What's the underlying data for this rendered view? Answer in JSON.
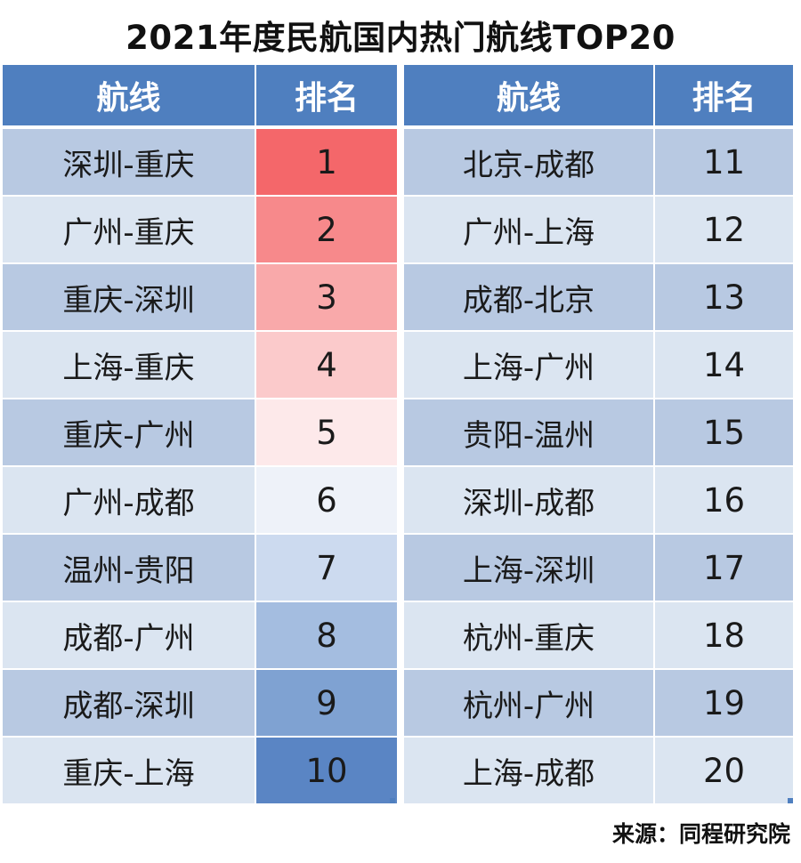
{
  "title": "2021年度民航国内热门航线TOP20",
  "source": "来源：同程研究院",
  "headers": {
    "route": "航线",
    "rank": "排名"
  },
  "colors": {
    "header_bg": "#4f7fbf",
    "row_dark": "#b8c9e2",
    "row_light": "#dbe5f1",
    "scale_top": "#f4676a",
    "scale_mid": "#f3f5fb",
    "scale_bottom": "#5a85c4"
  },
  "chart_data": {
    "type": "table",
    "title": "2021年度民航国内热门航线TOP20",
    "columns": [
      "航线",
      "排名"
    ],
    "rows": [
      {
        "route": "深圳-重庆",
        "rank": "1"
      },
      {
        "route": "广州-重庆",
        "rank": "2"
      },
      {
        "route": "重庆-深圳",
        "rank": "3"
      },
      {
        "route": "上海-重庆",
        "rank": "4"
      },
      {
        "route": "重庆-广州",
        "rank": "5"
      },
      {
        "route": "广州-成都",
        "rank": "6"
      },
      {
        "route": "温州-贵阳",
        "rank": "7"
      },
      {
        "route": "成都-广州",
        "rank": "8"
      },
      {
        "route": "成都-深圳",
        "rank": "9"
      },
      {
        "route": "重庆-上海",
        "rank": "10"
      },
      {
        "route": "北京-成都",
        "rank": "11"
      },
      {
        "route": "广州-上海",
        "rank": "12"
      },
      {
        "route": "成都-北京",
        "rank": "13"
      },
      {
        "route": "上海-广州",
        "rank": "14"
      },
      {
        "route": "贵阳-温州",
        "rank": "15"
      },
      {
        "route": "深圳-成都",
        "rank": "16"
      },
      {
        "route": "上海-深圳",
        "rank": "17"
      },
      {
        "route": "杭州-重庆",
        "rank": "18"
      },
      {
        "route": "杭州-广州",
        "rank": "19"
      },
      {
        "route": "上海-成都",
        "rank": "20"
      }
    ],
    "rank_color_scale": [
      "#f4676a",
      "#f7898b",
      "#f9a9aa",
      "#fbcacb",
      "#fde9ea",
      "#eef2f9",
      "#ccdaef",
      "#a4bde0",
      "#7fa2d2",
      "#5a85c4"
    ]
  }
}
